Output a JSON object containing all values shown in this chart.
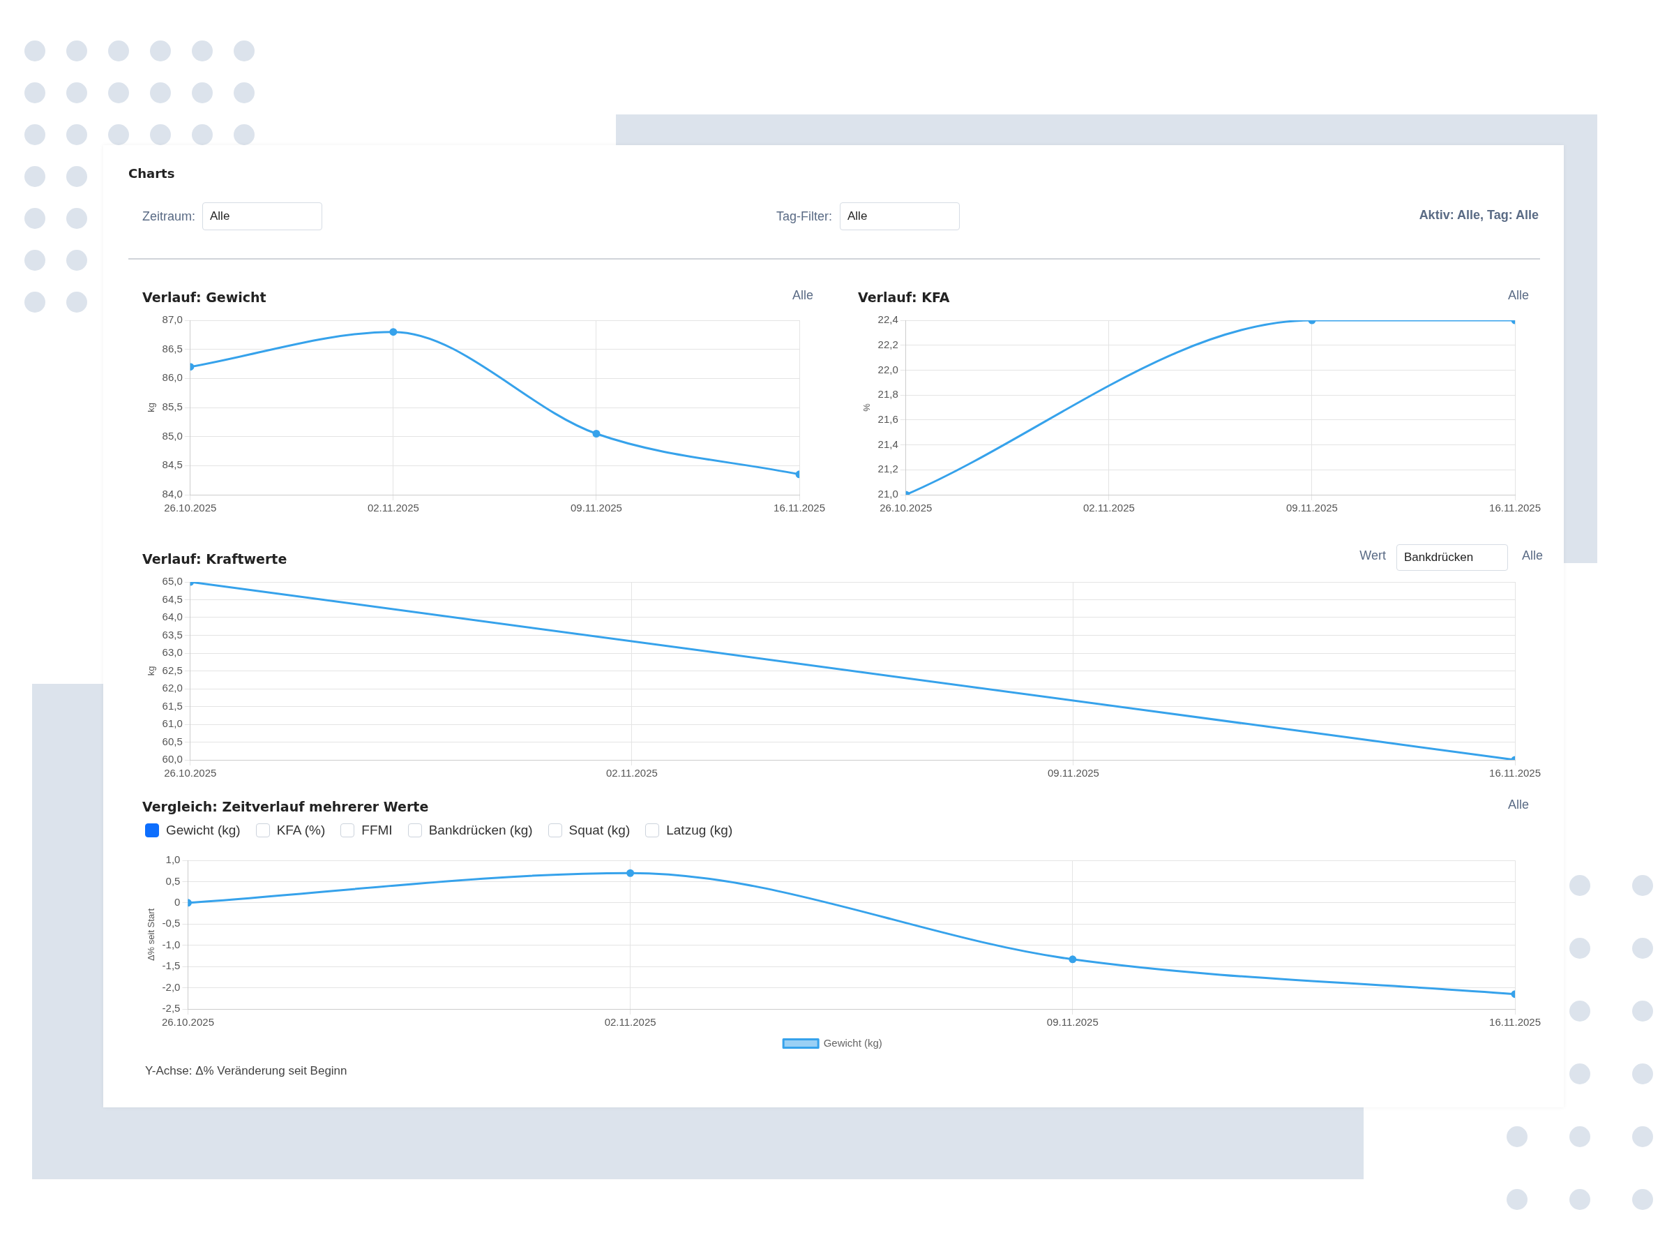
{
  "chart_data": [
    {
      "type": "other",
      "title": "Charts",
      "annotations": [
        "Zeitraum:",
        "Alle",
        "Tag-Filter:",
        "Alle",
        "Aktiv: Alle, Tag: Alle"
      ]
    },
    {
      "type": "line",
      "title": "Verlauf: Gewicht",
      "ylabel": "kg",
      "annotations": [
        "Alle"
      ],
      "x": [
        "2025-10-26",
        "2025-11-02",
        "2025-11-09",
        "2025-11-16"
      ],
      "series": [
        {
          "color": "#36a2eb",
          "values": [
            86.2,
            86.8,
            85.05,
            84.35
          ]
        }
      ],
      "xlim": [
        "2025-10-26",
        "2025-11-16"
      ],
      "xticks": [
        {
          "value": "2025-10-26",
          "label": "26.10.2025"
        },
        {
          "value": "2025-11-02",
          "label": "02.11.2025"
        },
        {
          "value": "2025-11-09",
          "label": "09.11.2025"
        },
        {
          "value": "2025-11-16",
          "label": "16.11.2025"
        }
      ],
      "ylim": [
        84,
        87
      ],
      "yticks": [
        {
          "value": 84,
          "label": "84,0"
        },
        {
          "value": 84.5,
          "label": "84,5"
        },
        {
          "value": 85,
          "label": "85,0"
        },
        {
          "value": 85.5,
          "label": "85,5"
        },
        {
          "value": 86,
          "label": "86,0"
        },
        {
          "value": 86.5,
          "label": "86,5"
        },
        {
          "value": 87,
          "label": "87,0"
        }
      ],
      "grid": true,
      "marker": "circle",
      "line_style": "solid"
    },
    {
      "type": "line",
      "title": "Verlauf: KFA",
      "ylabel": "%",
      "annotations": [
        "Alle"
      ],
      "x": [
        "2025-10-26",
        "2025-11-09",
        "2025-11-16"
      ],
      "series": [
        {
          "color": "#36a2eb",
          "values": [
            21.0,
            22.4,
            22.4
          ]
        }
      ],
      "xlim": [
        "2025-10-26",
        "2025-11-16"
      ],
      "xticks": [
        {
          "value": "2025-10-26",
          "label": "26.10.2025"
        },
        {
          "value": "2025-11-02",
          "label": "02.11.2025"
        },
        {
          "value": "2025-11-09",
          "label": "09.11.2025"
        },
        {
          "value": "2025-11-16",
          "label": "16.11.2025"
        }
      ],
      "ylim": [
        21,
        22.4
      ],
      "yticks": [
        {
          "value": 21,
          "label": "21,0"
        },
        {
          "value": 21.2,
          "label": "21,2"
        },
        {
          "value": 21.4,
          "label": "21,4"
        },
        {
          "value": 21.6,
          "label": "21,6"
        },
        {
          "value": 21.8,
          "label": "21,8"
        },
        {
          "value": 22,
          "label": "22,0"
        },
        {
          "value": 22.2,
          "label": "22,2"
        },
        {
          "value": 22.4,
          "label": "22,4"
        }
      ],
      "grid": true,
      "marker": "circle",
      "line_style": "solid"
    },
    {
      "type": "line",
      "title": "Verlauf: Kraftwerte",
      "ylabel": "kg",
      "annotations": [
        "Wert",
        "Bankdrücken",
        "Alle"
      ],
      "x": [
        "2025-10-26",
        "2025-11-16"
      ],
      "series": [
        {
          "color": "#36a2eb",
          "values": [
            65.0,
            60.0
          ]
        }
      ],
      "xlim": [
        "2025-10-26",
        "2025-11-16"
      ],
      "xticks": [
        {
          "value": "2025-10-26",
          "label": "26.10.2025"
        },
        {
          "value": "2025-11-02",
          "label": "02.11.2025"
        },
        {
          "value": "2025-11-09",
          "label": "09.11.2025"
        },
        {
          "value": "2025-11-16",
          "label": "16.11.2025"
        }
      ],
      "ylim": [
        60,
        65
      ],
      "yticks": [
        {
          "value": 60,
          "label": "60,0"
        },
        {
          "value": 60.5,
          "label": "60,5"
        },
        {
          "value": 61,
          "label": "61,0"
        },
        {
          "value": 61.5,
          "label": "61,5"
        },
        {
          "value": 62,
          "label": "62,0"
        },
        {
          "value": 62.5,
          "label": "62,5"
        },
        {
          "value": 63,
          "label": "63,0"
        },
        {
          "value": 63.5,
          "label": "63,5"
        },
        {
          "value": 64,
          "label": "64,0"
        },
        {
          "value": 64.5,
          "label": "64,5"
        },
        {
          "value": 65,
          "label": "65,0"
        }
      ],
      "grid": true,
      "marker": "circle",
      "line_style": "solid"
    },
    {
      "type": "line",
      "title": "Vergleich: Zeitverlauf mehrerer Werte",
      "ylabel": "Δ% seit Start",
      "annotations": [
        "Alle",
        "Gewicht (kg)",
        "KFA (%)",
        "FFMI",
        "Bankdrücken (kg)",
        "Squat (kg)",
        "Latzug (kg)",
        "Y-Achse: Δ% Veränderung seit Beginn"
      ],
      "x": [
        "2025-10-26",
        "2025-11-02",
        "2025-11-09",
        "2025-11-16"
      ],
      "series": [
        {
          "name": "Gewicht (kg)",
          "color": "#36a2eb",
          "values": [
            0,
            0.7,
            -1.33,
            -2.15
          ]
        }
      ],
      "xlim": [
        "2025-10-26",
        "2025-11-16"
      ],
      "xticks": [
        {
          "value": "2025-10-26",
          "label": "26.10.2025"
        },
        {
          "value": "2025-11-02",
          "label": "02.11.2025"
        },
        {
          "value": "2025-11-09",
          "label": "09.11.2025"
        },
        {
          "value": "2025-11-16",
          "label": "16.11.2025"
        }
      ],
      "ylim": [
        -2.5,
        1
      ],
      "yticks": [
        {
          "value": -2.5,
          "label": "-2,5"
        },
        {
          "value": -2,
          "label": "-2,0"
        },
        {
          "value": -1.5,
          "label": "-1,5"
        },
        {
          "value": -1,
          "label": "-1,0"
        },
        {
          "value": -0.5,
          "label": "-0,5"
        },
        0,
        {
          "value": 0.5,
          "label": "0,5"
        },
        {
          "value": 1,
          "label": "1,0"
        }
      ],
      "grid": true,
      "legend": "bottom",
      "marker": "circle",
      "line_style": "solid"
    }
  ]
}
